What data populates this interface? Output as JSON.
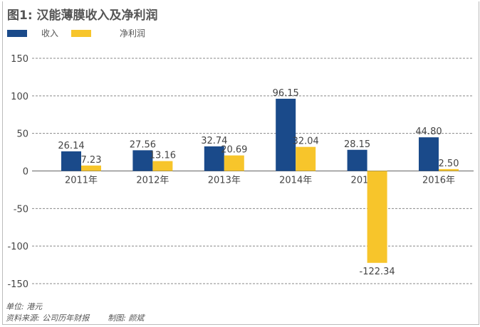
{
  "chart_data": {
    "type": "bar",
    "title": "图1: 汉能薄膜收入及净利润",
    "categories": [
      "2011年",
      "2012年",
      "2013年",
      "2014年",
      "2015年",
      "2016年"
    ],
    "series": [
      {
        "name": "收入",
        "color": "#1a4a8a",
        "values": [
          26.14,
          27.56,
          32.74,
          96.15,
          28.15,
          44.8
        ],
        "labels": [
          "26.14",
          "27.56",
          "32.74",
          "96.15",
          "28.15",
          "44.80"
        ]
      },
      {
        "name": "净利润",
        "color": "#f7c52b",
        "values": [
          7.23,
          13.16,
          20.69,
          32.04,
          -122.34,
          2.5
        ],
        "labels": [
          "7.23",
          "13.16",
          "20.69",
          "32.04",
          "-122.34",
          "2.50"
        ]
      }
    ],
    "ylim": [
      -150,
      150
    ],
    "yticks": [
      150,
      100,
      50,
      0,
      -50,
      -100,
      -150
    ],
    "grid": true,
    "legend": "top-left",
    "xlabel": "",
    "ylabel": ""
  },
  "footer": {
    "unit": "单位: 港元",
    "source": "资料来源: 公司历年财报",
    "author": "制图: 颜斌"
  }
}
